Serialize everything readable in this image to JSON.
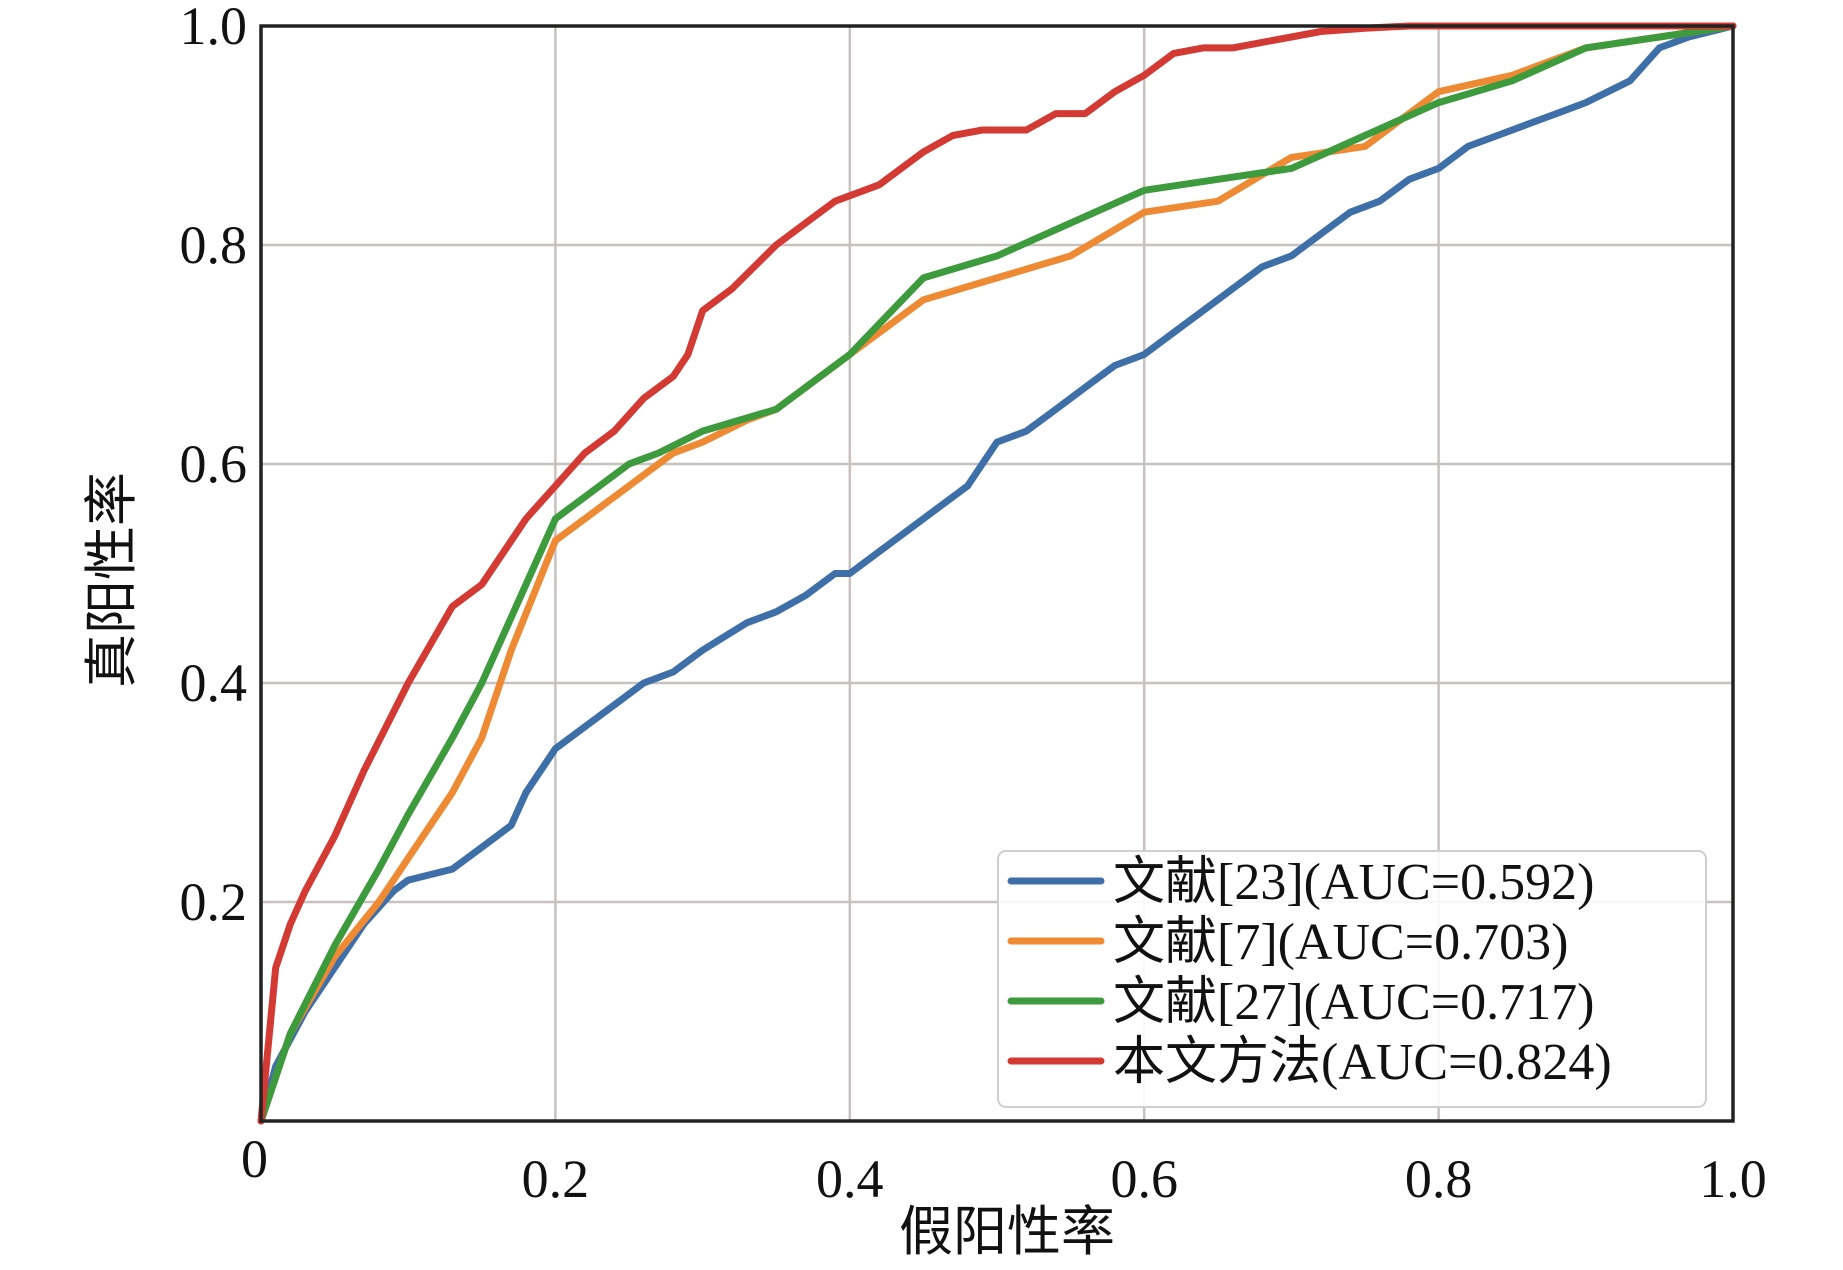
{
  "chart_data": {
    "type": "line",
    "title": "",
    "xlabel": "假阳性率",
    "ylabel": "真阳性率",
    "xlim": [
      0,
      1
    ],
    "ylim": [
      0,
      1
    ],
    "grid": true,
    "legend_position": "bottom-right",
    "x_ticks": [
      "0",
      "0.2",
      "0.4",
      "0.6",
      "0.8",
      "1.0"
    ],
    "y_ticks": [
      "0.2",
      "0.4",
      "0.6",
      "0.8",
      "1.0"
    ],
    "series": [
      {
        "name": "文献[23](AUC=0.592)",
        "color": "#3f6fa8",
        "x": [
          0,
          0.01,
          0.03,
          0.05,
          0.07,
          0.09,
          0.1,
          0.13,
          0.15,
          0.17,
          0.18,
          0.2,
          0.22,
          0.24,
          0.26,
          0.28,
          0.3,
          0.33,
          0.35,
          0.37,
          0.39,
          0.4,
          0.42,
          0.44,
          0.46,
          0.48,
          0.5,
          0.52,
          0.54,
          0.56,
          0.58,
          0.6,
          0.62,
          0.64,
          0.66,
          0.68,
          0.7,
          0.72,
          0.74,
          0.76,
          0.78,
          0.8,
          0.82,
          0.84,
          0.86,
          0.88,
          0.9,
          0.93,
          0.95,
          0.97,
          1.0
        ],
        "y": [
          0,
          0.05,
          0.1,
          0.14,
          0.18,
          0.21,
          0.22,
          0.23,
          0.25,
          0.27,
          0.3,
          0.34,
          0.36,
          0.38,
          0.4,
          0.41,
          0.43,
          0.455,
          0.465,
          0.48,
          0.5,
          0.5,
          0.52,
          0.54,
          0.56,
          0.58,
          0.62,
          0.63,
          0.65,
          0.67,
          0.69,
          0.7,
          0.72,
          0.74,
          0.76,
          0.78,
          0.79,
          0.81,
          0.83,
          0.84,
          0.86,
          0.87,
          0.89,
          0.9,
          0.91,
          0.92,
          0.93,
          0.95,
          0.98,
          0.99,
          1.0
        ]
      },
      {
        "name": "文献[7](AUC=0.703)",
        "color": "#ef8a34",
        "x": [
          0,
          0.02,
          0.05,
          0.08,
          0.1,
          0.13,
          0.15,
          0.17,
          0.2,
          0.22,
          0.25,
          0.28,
          0.3,
          0.33,
          0.35,
          0.38,
          0.4,
          0.45,
          0.5,
          0.55,
          0.6,
          0.65,
          0.7,
          0.75,
          0.8,
          0.85,
          0.9,
          0.95,
          1.0
        ],
        "y": [
          0,
          0.08,
          0.15,
          0.2,
          0.24,
          0.3,
          0.35,
          0.43,
          0.53,
          0.55,
          0.58,
          0.61,
          0.62,
          0.64,
          0.65,
          0.68,
          0.7,
          0.75,
          0.77,
          0.79,
          0.83,
          0.84,
          0.88,
          0.89,
          0.94,
          0.955,
          0.98,
          0.99,
          1.0
        ]
      },
      {
        "name": "文献[27](AUC=0.717)",
        "color": "#3d9a3d",
        "x": [
          0,
          0.02,
          0.05,
          0.08,
          0.1,
          0.13,
          0.15,
          0.2,
          0.22,
          0.25,
          0.27,
          0.3,
          0.35,
          0.4,
          0.45,
          0.5,
          0.55,
          0.6,
          0.65,
          0.7,
          0.75,
          0.8,
          0.85,
          0.9,
          0.95,
          1.0
        ],
        "y": [
          0,
          0.08,
          0.16,
          0.23,
          0.28,
          0.35,
          0.4,
          0.55,
          0.57,
          0.6,
          0.61,
          0.63,
          0.65,
          0.7,
          0.77,
          0.79,
          0.82,
          0.85,
          0.86,
          0.87,
          0.9,
          0.93,
          0.95,
          0.98,
          0.99,
          1.0
        ]
      },
      {
        "name": "本文方法(AUC=0.824)",
        "color": "#d33a33",
        "x": [
          0,
          0.01,
          0.02,
          0.03,
          0.05,
          0.07,
          0.1,
          0.13,
          0.15,
          0.18,
          0.2,
          0.22,
          0.24,
          0.26,
          0.28,
          0.29,
          0.3,
          0.32,
          0.35,
          0.37,
          0.39,
          0.42,
          0.45,
          0.47,
          0.49,
          0.52,
          0.54,
          0.56,
          0.58,
          0.6,
          0.62,
          0.64,
          0.66,
          0.68,
          0.7,
          0.72,
          0.75,
          0.78,
          0.8,
          0.85,
          0.9,
          1.0
        ],
        "y": [
          0,
          0.14,
          0.18,
          0.21,
          0.26,
          0.32,
          0.4,
          0.47,
          0.49,
          0.55,
          0.58,
          0.61,
          0.63,
          0.66,
          0.68,
          0.7,
          0.74,
          0.76,
          0.8,
          0.82,
          0.84,
          0.855,
          0.885,
          0.9,
          0.905,
          0.905,
          0.92,
          0.92,
          0.94,
          0.955,
          0.975,
          0.98,
          0.98,
          0.985,
          0.99,
          0.995,
          0.998,
          1.0,
          1.0,
          1.0,
          1.0,
          1.0
        ]
      }
    ]
  }
}
